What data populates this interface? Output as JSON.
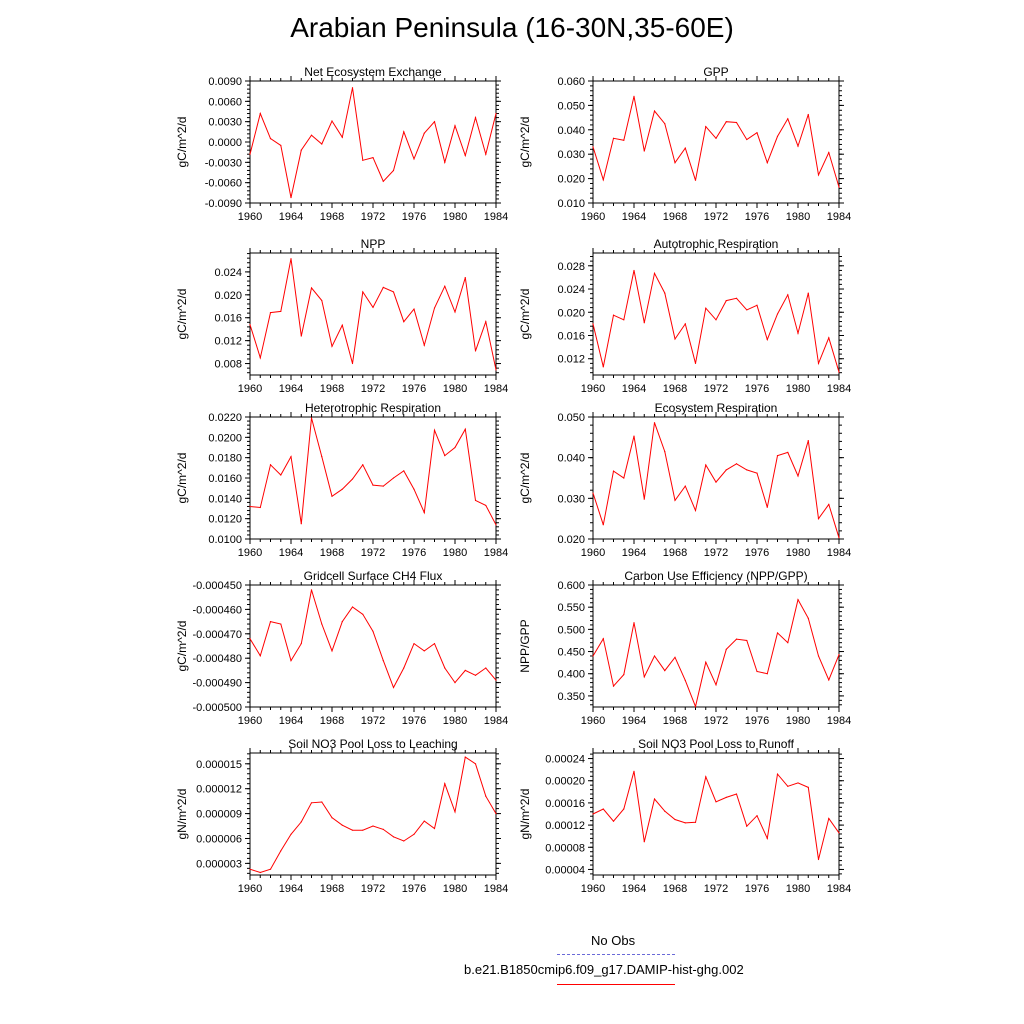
{
  "page": {
    "title": "Arabian Peninsula (16-30N,35-60E)"
  },
  "legend": {
    "items": [
      {
        "label": "No Obs",
        "color": "#6a6ad8",
        "style": "dashed"
      },
      {
        "label": "b.e21.B1850cmip6.f09_g17.DAMIP-hist-ghg.002",
        "color": "#ff0000",
        "style": "solid"
      }
    ]
  },
  "chart_data": [
    {
      "type": "line",
      "title": "Net Ecosystem Exchange",
      "ylabel": "gC/m^2/d",
      "xlabel": "",
      "x_ticks": [
        "1960",
        "1964",
        "1968",
        "1972",
        "1976",
        "1980",
        "1984"
      ],
      "xlim": [
        1960,
        1984
      ],
      "ylim": [
        -0.009,
        0.009
      ],
      "y_ticks": [
        "-0.0090",
        "-0.0060",
        "-0.0030",
        "0.0000",
        "0.0030",
        "0.0060",
        "0.0090"
      ],
      "y_tick_values": [
        -0.009,
        -0.006,
        -0.003,
        0.0,
        0.003,
        0.006,
        0.009
      ],
      "color": "#ff0000",
      "x": [
        1960,
        1961,
        1962,
        1963,
        1964,
        1965,
        1966,
        1967,
        1968,
        1969,
        1970,
        1971,
        1972,
        1973,
        1974,
        1975,
        1976,
        1977,
        1978,
        1979,
        1980,
        1981,
        1982,
        1983,
        1984
      ],
      "values": [
        -0.0018,
        0.0042,
        0.0005,
        -0.0005,
        -0.0082,
        -0.0012,
        0.001,
        -0.0003,
        0.0031,
        0.0007,
        0.008,
        -0.0027,
        -0.0023,
        -0.0058,
        -0.0042,
        0.0015,
        -0.0025,
        0.0013,
        0.003,
        -0.003,
        0.0024,
        -0.002,
        0.0036,
        -0.0018,
        0.0042
      ]
    },
    {
      "type": "line",
      "title": "GPP",
      "ylabel": "gC/m^2/d",
      "xlabel": "",
      "x_ticks": [
        "1960",
        "1964",
        "1968",
        "1972",
        "1976",
        "1980",
        "1984"
      ],
      "xlim": [
        1960,
        1984
      ],
      "ylim": [
        0.01,
        0.06
      ],
      "y_ticks": [
        "0.010",
        "0.020",
        "0.030",
        "0.040",
        "0.050",
        "0.060"
      ],
      "y_tick_values": [
        0.01,
        0.02,
        0.03,
        0.04,
        0.05,
        0.06
      ],
      "color": "#ff0000",
      "x": [
        1960,
        1961,
        1962,
        1963,
        1964,
        1965,
        1966,
        1967,
        1968,
        1969,
        1970,
        1971,
        1972,
        1973,
        1974,
        1975,
        1976,
        1977,
        1978,
        1979,
        1980,
        1981,
        1982,
        1983,
        1984
      ],
      "values": [
        0.033,
        0.0195,
        0.0365,
        0.0357,
        0.0537,
        0.0313,
        0.0477,
        0.0425,
        0.0265,
        0.0325,
        0.0193,
        0.0413,
        0.0365,
        0.0433,
        0.043,
        0.036,
        0.0388,
        0.0265,
        0.0373,
        0.0445,
        0.0333,
        0.0463,
        0.0215,
        0.0307,
        0.0165
      ]
    },
    {
      "type": "line",
      "title": "NPP",
      "ylabel": "gC/m^2/d",
      "xlabel": "",
      "x_ticks": [
        "1960",
        "1964",
        "1968",
        "1972",
        "1976",
        "1980",
        "1984"
      ],
      "xlim": [
        1960,
        1984
      ],
      "ylim": [
        0.006,
        0.0273
      ],
      "y_ticks": [
        "0.008",
        "0.012",
        "0.016",
        "0.020",
        "0.024"
      ],
      "y_tick_values": [
        0.008,
        0.012,
        0.016,
        0.02,
        0.024
      ],
      "color": "#ff0000",
      "x": [
        1960,
        1961,
        1962,
        1963,
        1964,
        1965,
        1966,
        1967,
        1968,
        1969,
        1970,
        1971,
        1972,
        1973,
        1974,
        1975,
        1976,
        1977,
        1978,
        1979,
        1980,
        1981,
        1982,
        1983,
        1984
      ],
      "values": [
        0.0148,
        0.009,
        0.0169,
        0.0171,
        0.0263,
        0.0128,
        0.0212,
        0.019,
        0.011,
        0.0147,
        0.008,
        0.0205,
        0.0178,
        0.0213,
        0.0205,
        0.0153,
        0.0175,
        0.0112,
        0.0177,
        0.0215,
        0.017,
        0.023,
        0.0102,
        0.0153,
        0.0069
      ]
    },
    {
      "type": "line",
      "title": "Autotrophic Respiration",
      "ylabel": "gC/m^2/d",
      "xlabel": "",
      "x_ticks": [
        "1960",
        "1964",
        "1968",
        "1972",
        "1976",
        "1980",
        "1984"
      ],
      "xlim": [
        1960,
        1984
      ],
      "ylim": [
        0.0092,
        0.0302
      ],
      "y_ticks": [
        "0.012",
        "0.016",
        "0.020",
        "0.024",
        "0.028"
      ],
      "y_tick_values": [
        0.012,
        0.016,
        0.02,
        0.024,
        0.028
      ],
      "color": "#ff0000",
      "x": [
        1960,
        1961,
        1962,
        1963,
        1964,
        1965,
        1966,
        1967,
        1968,
        1969,
        1970,
        1971,
        1972,
        1973,
        1974,
        1975,
        1976,
        1977,
        1978,
        1979,
        1980,
        1981,
        1982,
        1983,
        1984
      ],
      "values": [
        0.018,
        0.0106,
        0.0195,
        0.0187,
        0.0272,
        0.0182,
        0.0267,
        0.0233,
        0.0154,
        0.018,
        0.0112,
        0.0207,
        0.0187,
        0.022,
        0.0224,
        0.0204,
        0.0212,
        0.0153,
        0.0197,
        0.023,
        0.0164,
        0.0233,
        0.0112,
        0.0156,
        0.0097
      ]
    },
    {
      "type": "line",
      "title": "Heterotrophic Respiration",
      "ylabel": "gC/m^2/d",
      "xlabel": "",
      "x_ticks": [
        "1960",
        "1964",
        "1968",
        "1972",
        "1976",
        "1980",
        "1984"
      ],
      "xlim": [
        1960,
        1984
      ],
      "ylim": [
        0.01,
        0.022
      ],
      "y_ticks": [
        "0.0100",
        "0.0120",
        "0.0140",
        "0.0160",
        "0.0180",
        "0.0200",
        "0.0220"
      ],
      "y_tick_values": [
        0.01,
        0.012,
        0.014,
        0.016,
        0.018,
        0.02,
        0.022
      ],
      "color": "#ff0000",
      "x": [
        1960,
        1961,
        1962,
        1963,
        1964,
        1965,
        1966,
        1967,
        1968,
        1969,
        1970,
        1971,
        1972,
        1973,
        1974,
        1975,
        1976,
        1977,
        1978,
        1979,
        1980,
        1981,
        1982,
        1983,
        1984
      ],
      "values": [
        0.0132,
        0.0131,
        0.0173,
        0.0163,
        0.0181,
        0.0115,
        0.0219,
        0.0181,
        0.0142,
        0.0149,
        0.0159,
        0.0173,
        0.0153,
        0.0152,
        0.016,
        0.0167,
        0.0149,
        0.0126,
        0.0207,
        0.0182,
        0.019,
        0.0208,
        0.0138,
        0.0133,
        0.0114
      ]
    },
    {
      "type": "line",
      "title": "Ecosystem Respiration",
      "ylabel": "gC/m^2/d",
      "xlabel": "",
      "x_ticks": [
        "1960",
        "1964",
        "1968",
        "1972",
        "1976",
        "1980",
        "1984"
      ],
      "xlim": [
        1960,
        1984
      ],
      "ylim": [
        0.02,
        0.05
      ],
      "y_ticks": [
        "0.020",
        "0.030",
        "0.040",
        "0.050"
      ],
      "y_tick_values": [
        0.02,
        0.03,
        0.04,
        0.05
      ],
      "color": "#ff0000",
      "x": [
        1960,
        1961,
        1962,
        1963,
        1964,
        1965,
        1966,
        1967,
        1968,
        1969,
        1970,
        1971,
        1972,
        1973,
        1974,
        1975,
        1976,
        1977,
        1978,
        1979,
        1980,
        1981,
        1982,
        1983,
        1984
      ],
      "values": [
        0.0313,
        0.0235,
        0.0367,
        0.035,
        0.0453,
        0.0298,
        0.0486,
        0.0415,
        0.0295,
        0.033,
        0.027,
        0.0382,
        0.034,
        0.037,
        0.0385,
        0.037,
        0.0362,
        0.0278,
        0.0405,
        0.0413,
        0.0355,
        0.0442,
        0.025,
        0.0285,
        0.0203
      ]
    },
    {
      "type": "line",
      "title": "Gridcell Surface CH4 Flux",
      "ylabel": "gC/m^2/d",
      "xlabel": "",
      "x_ticks": [
        "1960",
        "1964",
        "1968",
        "1972",
        "1976",
        "1980",
        "1984"
      ],
      "xlim": [
        1960,
        1984
      ],
      "ylim": [
        -0.0005,
        -0.00045
      ],
      "y_ticks": [
        "-0.000500",
        "-0.000490",
        "-0.000480",
        "-0.000470",
        "-0.000460",
        "-0.000450"
      ],
      "y_tick_values": [
        -0.0005,
        -0.00049,
        -0.00048,
        -0.00047,
        -0.00046,
        -0.00045
      ],
      "color": "#ff0000",
      "x": [
        1960,
        1961,
        1962,
        1963,
        1964,
        1965,
        1966,
        1967,
        1968,
        1969,
        1970,
        1971,
        1972,
        1973,
        1974,
        1975,
        1976,
        1977,
        1978,
        1979,
        1980,
        1981,
        1982,
        1983,
        1984
      ],
      "values": [
        -0.000472,
        -0.000479,
        -0.000465,
        -0.000466,
        -0.000481,
        -0.000474,
        -0.000452,
        -0.000466,
        -0.000477,
        -0.000465,
        -0.000459,
        -0.000462,
        -0.000469,
        -0.000481,
        -0.000492,
        -0.000484,
        -0.000474,
        -0.000477,
        -0.000474,
        -0.000484,
        -0.00049,
        -0.000485,
        -0.000487,
        -0.000484,
        -0.000489
      ]
    },
    {
      "type": "line",
      "title": "Carbon Use Efficiency (NPP/GPP)",
      "ylabel": "NPP/GPP",
      "xlabel": "",
      "x_ticks": [
        "1960",
        "1964",
        "1968",
        "1972",
        "1976",
        "1980",
        "1984"
      ],
      "xlim": [
        1960,
        1984
      ],
      "ylim": [
        0.325,
        0.6
      ],
      "y_ticks": [
        "0.350",
        "0.400",
        "0.450",
        "0.500",
        "0.550",
        "0.600"
      ],
      "y_tick_values": [
        0.35,
        0.4,
        0.45,
        0.5,
        0.55,
        0.6
      ],
      "color": "#ff0000",
      "x": [
        1960,
        1961,
        1962,
        1963,
        1964,
        1965,
        1966,
        1967,
        1968,
        1969,
        1970,
        1971,
        1972,
        1973,
        1974,
        1975,
        1976,
        1977,
        1978,
        1979,
        1980,
        1981,
        1982,
        1983,
        1984
      ],
      "values": [
        0.44,
        0.479,
        0.372,
        0.398,
        0.515,
        0.393,
        0.44,
        0.407,
        0.437,
        0.385,
        0.326,
        0.426,
        0.375,
        0.455,
        0.478,
        0.475,
        0.405,
        0.4,
        0.492,
        0.47,
        0.567,
        0.525,
        0.44,
        0.386,
        0.443
      ]
    },
    {
      "type": "line",
      "title": "Soil NO3 Pool Loss to Leaching",
      "ylabel": "gN/m^2/d",
      "xlabel": "",
      "x_ticks": [
        "1960",
        "1964",
        "1968",
        "1972",
        "1976",
        "1980",
        "1984"
      ],
      "xlim": [
        1960,
        1984
      ],
      "ylim": [
        1.6e-06,
        1.63e-05
      ],
      "y_ticks": [
        "0.000003",
        "0.000006",
        "0.000009",
        "0.000012",
        "0.000015"
      ],
      "y_tick_values": [
        3e-06,
        6e-06,
        9e-06,
        1.2e-05,
        1.5e-05
      ],
      "color": "#ff0000",
      "x": [
        1960,
        1961,
        1962,
        1963,
        1964,
        1965,
        1966,
        1967,
        1968,
        1969,
        1970,
        1971,
        1972,
        1973,
        1974,
        1975,
        1976,
        1977,
        1978,
        1979,
        1980,
        1981,
        1982,
        1983,
        1984
      ],
      "values": [
        2.3e-06,
        1.9e-06,
        2.3e-06,
        4.5e-06,
        6.5e-06,
        8e-06,
        1.03e-05,
        1.04e-05,
        8.5e-06,
        7.6e-06,
        7e-06,
        7e-06,
        7.5e-06,
        7.1e-06,
        6.2e-06,
        5.7e-06,
        6.5e-06,
        8.1e-06,
        7.2e-06,
        1.26e-05,
        9.2e-06,
        1.58e-05,
        1.5e-05,
        1.11e-05,
        9e-06
      ]
    },
    {
      "type": "line",
      "title": "Soil NO3 Pool Loss to Runoff",
      "ylabel": "gN/m^2/d",
      "xlabel": "",
      "x_ticks": [
        "1960",
        "1964",
        "1968",
        "1972",
        "1976",
        "1980",
        "1984"
      ],
      "xlim": [
        1960,
        1984
      ],
      "ylim": [
        3e-05,
        0.00025
      ],
      "y_ticks": [
        "0.00004",
        "0.00008",
        "0.00012",
        "0.00016",
        "0.00020",
        "0.00024"
      ],
      "y_tick_values": [
        4e-05,
        8e-05,
        0.00012,
        0.00016,
        0.0002,
        0.00024
      ],
      "color": "#ff0000",
      "x": [
        1960,
        1961,
        1962,
        1963,
        1964,
        1965,
        1966,
        1967,
        1968,
        1969,
        1970,
        1971,
        1972,
        1973,
        1974,
        1975,
        1976,
        1977,
        1978,
        1979,
        1980,
        1981,
        1982,
        1983,
        1984
      ],
      "values": [
        0.00014,
        0.000149,
        0.000127,
        0.000149,
        0.000217,
        9e-05,
        0.000167,
        0.000145,
        0.00013,
        0.000124,
        0.000125,
        0.000207,
        0.000162,
        0.00017,
        0.000176,
        0.000118,
        0.000137,
        9.6e-05,
        0.000212,
        0.00019,
        0.000196,
        0.000188,
        5.8e-05,
        0.000132,
        0.000106
      ]
    }
  ]
}
